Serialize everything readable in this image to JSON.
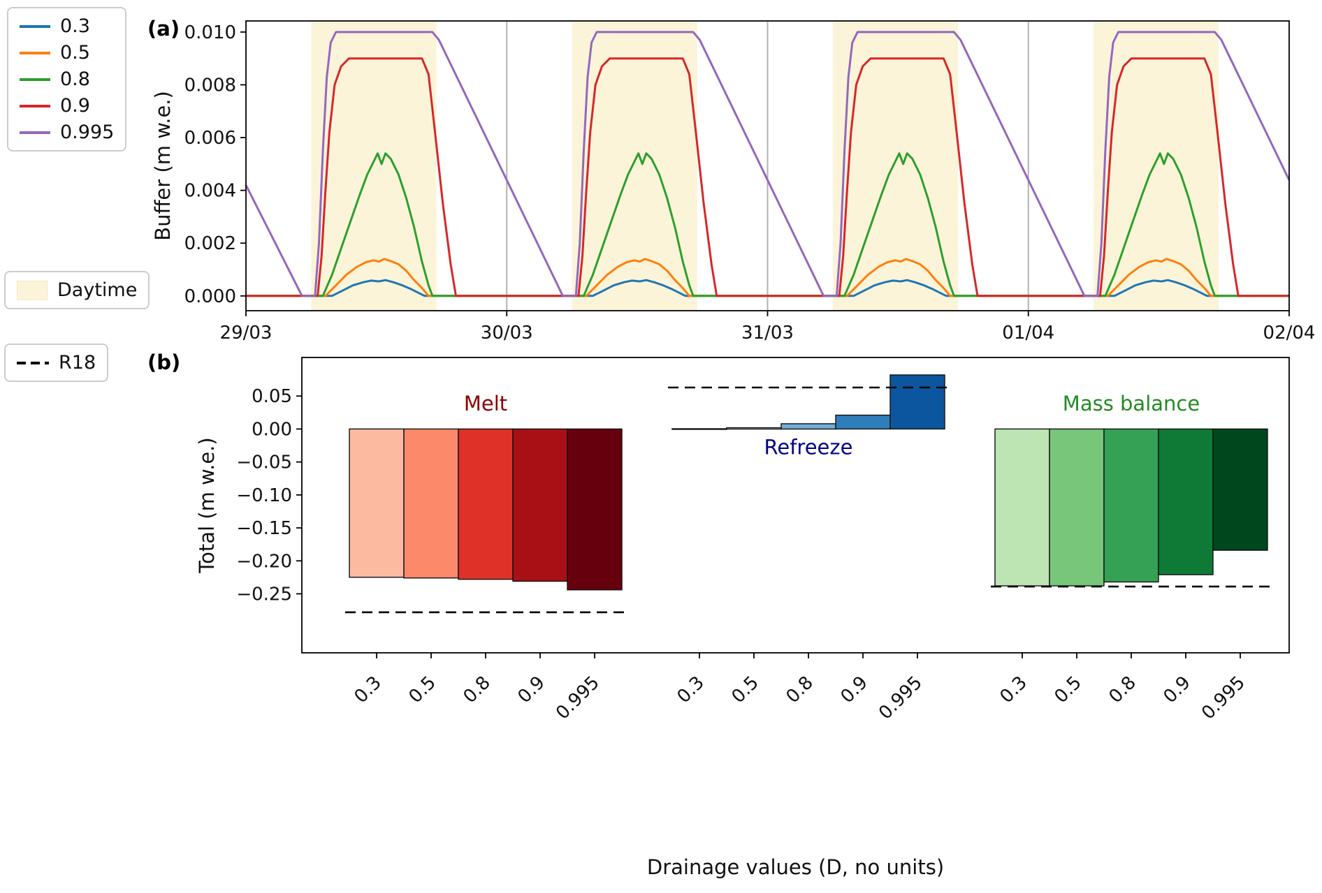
{
  "figure": {
    "panel_a_label": "(a)",
    "panel_b_label": "(b)"
  },
  "legend_drainage": {
    "items": [
      {
        "label": "0.3",
        "color": "#1f77b4"
      },
      {
        "label": "0.5",
        "color": "#ff7f0e"
      },
      {
        "label": "0.8",
        "color": "#2ca02c"
      },
      {
        "label": "0.9",
        "color": "#d62728"
      },
      {
        "label": "0.995",
        "color": "#9467bd"
      }
    ]
  },
  "legend_daytime": {
    "label": "Daytime",
    "color": "#fbf4d9"
  },
  "legend_r18": {
    "label": "R18",
    "color": "#000000"
  },
  "chart_data": [
    {
      "type": "line",
      "panel": "a",
      "ylabel": "Buffer (m w.e.)",
      "ylim": [
        -0.00056,
        0.01042
      ],
      "xlim": [
        0,
        4
      ],
      "days": 4,
      "band_color": "#fbf4d9",
      "grid_color": "#b3b3b3",
      "daytime_bands": [
        [
          0.25,
          0.73
        ],
        [
          1.25,
          1.73
        ],
        [
          2.25,
          2.73
        ],
        [
          3.25,
          3.73
        ]
      ],
      "gridlines_x": [
        1,
        2,
        3
      ],
      "yticks": [
        {
          "v": 0.0,
          "label": "0.000"
        },
        {
          "v": 0.002,
          "label": "0.002"
        },
        {
          "v": 0.004,
          "label": "0.004"
        },
        {
          "v": 0.006,
          "label": "0.006"
        },
        {
          "v": 0.008,
          "label": "0.008"
        },
        {
          "v": 0.01,
          "label": "0.010"
        }
      ],
      "xticks": [
        {
          "v": 0,
          "label": "29/03"
        },
        {
          "v": 1,
          "label": "30/03"
        },
        {
          "v": 2,
          "label": "31/03"
        },
        {
          "v": 3,
          "label": "01/04"
        },
        {
          "v": 4,
          "label": "02/04"
        }
      ],
      "series": [
        {
          "name": "0.3",
          "color": "#1f77b4",
          "pre": [
            [
              0,
              0
            ]
          ],
          "post": [
            [
              4,
              0
            ]
          ],
          "day_profile": [
            [
              0.33,
              0
            ],
            [
              0.37,
              0.0002
            ],
            [
              0.41,
              0.0004
            ],
            [
              0.45,
              0.00052
            ],
            [
              0.48,
              0.00058
            ],
            [
              0.51,
              0.00055
            ],
            [
              0.535,
              0.0006
            ],
            [
              0.565,
              0.00052
            ],
            [
              0.6,
              0.0004
            ],
            [
              0.635,
              0.00025
            ],
            [
              0.665,
              0.0001
            ],
            [
              0.685,
              0
            ]
          ]
        },
        {
          "name": "0.5",
          "color": "#ff7f0e",
          "pre": [
            [
              0,
              0
            ]
          ],
          "post": [
            [
              4,
              0
            ]
          ],
          "day_profile": [
            [
              0.305,
              0
            ],
            [
              0.345,
              0.0004
            ],
            [
              0.385,
              0.0008
            ],
            [
              0.425,
              0.0011
            ],
            [
              0.46,
              0.00128
            ],
            [
              0.49,
              0.00135
            ],
            [
              0.51,
              0.0013
            ],
            [
              0.53,
              0.0014
            ],
            [
              0.555,
              0.00132
            ],
            [
              0.585,
              0.0012
            ],
            [
              0.615,
              0.00095
            ],
            [
              0.645,
              0.0006
            ],
            [
              0.675,
              0.0003
            ],
            [
              0.7,
              0
            ]
          ]
        },
        {
          "name": "0.8",
          "color": "#2ca02c",
          "pre": [
            [
              0,
              0
            ]
          ],
          "post": [
            [
              4,
              0
            ]
          ],
          "day_profile": [
            [
              0.295,
              0
            ],
            [
              0.33,
              0.0008
            ],
            [
              0.365,
              0.0018
            ],
            [
              0.4,
              0.0028
            ],
            [
              0.435,
              0.0038
            ],
            [
              0.465,
              0.0046
            ],
            [
              0.49,
              0.0051
            ],
            [
              0.505,
              0.0054
            ],
            [
              0.52,
              0.005
            ],
            [
              0.535,
              0.0054
            ],
            [
              0.555,
              0.0052
            ],
            [
              0.585,
              0.0046
            ],
            [
              0.615,
              0.0037
            ],
            [
              0.645,
              0.0026
            ],
            [
              0.675,
              0.0013
            ],
            [
              0.7,
              0.0004
            ],
            [
              0.715,
              0
            ]
          ]
        },
        {
          "name": "0.9",
          "color": "#d62728",
          "pre": [
            [
              0,
              0
            ]
          ],
          "post": [
            [
              4,
              0
            ]
          ],
          "day_profile": [
            [
              0.275,
              0
            ],
            [
              0.29,
              0.0015
            ],
            [
              0.305,
              0.004
            ],
            [
              0.32,
              0.0062
            ],
            [
              0.34,
              0.008
            ],
            [
              0.365,
              0.0087
            ],
            [
              0.395,
              0.009
            ],
            [
              0.675,
              0.009
            ],
            [
              0.7,
              0.0084
            ],
            [
              0.725,
              0.0062
            ],
            [
              0.755,
              0.0035
            ],
            [
              0.785,
              0.0012
            ],
            [
              0.805,
              0
            ]
          ]
        },
        {
          "name": "0.995",
          "color": "#9467bd",
          "pre": [
            [
              0,
              0.0042
            ],
            [
              0.215,
              0
            ]
          ],
          "day_profile": [
            [
              0.265,
              0
            ],
            [
              0.28,
              0.002
            ],
            [
              0.295,
              0.0055
            ],
            [
              0.31,
              0.0083
            ],
            [
              0.325,
              0.0096
            ],
            [
              0.345,
              0.01
            ],
            [
              0.715,
              0.01
            ],
            [
              0.74,
              0.0097
            ],
            [
              1.215,
              0
            ]
          ]
        }
      ]
    },
    {
      "type": "bar",
      "panel": "b",
      "ylabel": "Total (m w.e.)",
      "xlabel": "Drainage values (D, no units)",
      "ylim": [
        -0.3395,
        0.1085
      ],
      "reference_name": "R18",
      "categories": [
        "0.3",
        "0.5",
        "0.8",
        "0.9",
        "0.995"
      ],
      "yticks": [
        {
          "v": 0.05,
          "label": "0.05"
        },
        {
          "v": 0.0,
          "label": "0.00"
        },
        {
          "v": -0.05,
          "label": "−0.05"
        },
        {
          "v": -0.1,
          "label": "−0.10"
        },
        {
          "v": -0.15,
          "label": "−0.15"
        },
        {
          "v": -0.2,
          "label": "−0.20"
        },
        {
          "v": -0.25,
          "label": "−0.25"
        }
      ],
      "groups": [
        {
          "name": "Melt",
          "label_color": "#8b0000",
          "label_position": "above",
          "colors": [
            "#fcbba1",
            "#fc8a6a",
            "#e03128",
            "#a81016",
            "#67000d"
          ],
          "values": [
            -0.225,
            -0.226,
            -0.228,
            -0.231,
            -0.244
          ],
          "r18": -0.278
        },
        {
          "name": "Refreeze",
          "label_color": "#00008b",
          "label_position": "below",
          "colors": [
            "#eef5fc",
            "#c3dcf0",
            "#72aed6",
            "#2f7ebc",
            "#0c56a0"
          ],
          "values": [
            0.0005,
            0.002,
            0.008,
            0.021,
            0.082
          ],
          "r18": 0.063
        },
        {
          "name": "Mass balance",
          "label_color": "#228b22",
          "label_position": "above",
          "colors": [
            "#bde5b4",
            "#77c679",
            "#35a155",
            "#0f7a35",
            "#00471d"
          ],
          "values": [
            -0.238,
            -0.238,
            -0.232,
            -0.221,
            -0.184
          ],
          "r18": -0.239
        }
      ]
    }
  ]
}
